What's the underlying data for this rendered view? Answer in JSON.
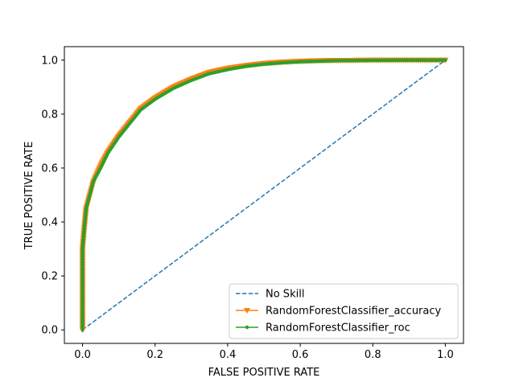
{
  "chart_data": {
    "type": "line",
    "title": "",
    "xlabel": "FALSE POSITIVE RATE",
    "ylabel": "TRUE POSITIVE RATE",
    "xlim": [
      -0.05,
      1.05
    ],
    "ylim": [
      -0.05,
      1.05
    ],
    "xticks": [
      0.0,
      0.2,
      0.4,
      0.6,
      0.8,
      1.0
    ],
    "xtick_labels": [
      "0.0",
      "0.2",
      "0.4",
      "0.6",
      "0.8",
      "1.0"
    ],
    "yticks": [
      0.0,
      0.2,
      0.4,
      0.6,
      0.8,
      1.0
    ],
    "ytick_labels": [
      "0.0",
      "0.2",
      "0.4",
      "0.6",
      "0.8",
      "1.0"
    ],
    "grid": false,
    "legend_position": "bottom-right",
    "series": [
      {
        "name": "No Skill",
        "color": "#1f77b4",
        "linestyle": "dashed",
        "marker": "none",
        "x": [
          0,
          1
        ],
        "y": [
          0,
          1
        ]
      },
      {
        "name": "RandomForestClassifier_accuracy",
        "color": "#ff7f0e",
        "linestyle": "solid",
        "marker": "triangle-down",
        "x": [
          0,
          0,
          0,
          0.005,
          0.01,
          0.02,
          0.03,
          0.05,
          0.07,
          0.1,
          0.13,
          0.16,
          0.2,
          0.25,
          0.3,
          0.35,
          0.4,
          0.45,
          0.5,
          0.55,
          0.6,
          0.65,
          0.7,
          0.8,
          0.9,
          1.0
        ],
        "y": [
          0,
          0.2,
          0.3,
          0.38,
          0.45,
          0.5,
          0.55,
          0.61,
          0.66,
          0.72,
          0.77,
          0.82,
          0.86,
          0.9,
          0.93,
          0.955,
          0.97,
          0.98,
          0.988,
          0.993,
          0.996,
          0.998,
          0.999,
          1.0,
          1.0,
          1.0
        ]
      },
      {
        "name": "RandomForestClassifier_roc",
        "color": "#2ca02c",
        "linestyle": "solid",
        "marker": "point",
        "x": [
          0,
          0,
          0,
          0.005,
          0.01,
          0.02,
          0.03,
          0.05,
          0.07,
          0.1,
          0.13,
          0.16,
          0.2,
          0.25,
          0.3,
          0.35,
          0.4,
          0.45,
          0.5,
          0.55,
          0.6,
          0.65,
          0.7,
          0.8,
          0.9,
          1.0
        ],
        "y": [
          0,
          0.2,
          0.3,
          0.38,
          0.45,
          0.5,
          0.55,
          0.6,
          0.655,
          0.715,
          0.765,
          0.815,
          0.855,
          0.895,
          0.925,
          0.95,
          0.965,
          0.977,
          0.985,
          0.99,
          0.994,
          0.996,
          0.998,
          0.999,
          1.0,
          1.0
        ]
      }
    ]
  }
}
